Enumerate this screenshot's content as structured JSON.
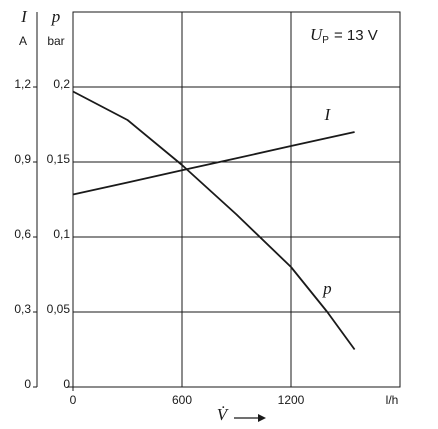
{
  "chart_data": {
    "type": "line",
    "x": [
      0,
      300,
      600,
      900,
      1200,
      1400,
      1550
    ],
    "series": [
      {
        "name": "I",
        "color": "#1a1a1a",
        "values": [
          0.77,
          0.818,
          0.867,
          0.915,
          0.964,
          0.996,
          1.02
        ]
      },
      {
        "name": "p",
        "color": "#1a1a1a",
        "axis": "y2",
        "values": [
          0.197,
          0.178,
          0.148,
          0.115,
          0.08,
          0.05,
          0.025
        ]
      }
    ],
    "xlim": [
      0,
      1800
    ],
    "xticks": [
      0,
      600,
      1200
    ],
    "x_unit": "l/h",
    "x_label": "V̇",
    "ylim": [
      0,
      1.5
    ],
    "yticks": [
      0,
      {
        "value": 0.3,
        "label": "0,3"
      },
      {
        "value": 0.6,
        "label": "0,6"
      },
      {
        "value": 0.9,
        "label": "0,9"
      },
      {
        "value": 1.2,
        "label": "1,2"
      }
    ],
    "y_label": "I",
    "y_unit": "A",
    "y2lim": [
      0,
      0.25
    ],
    "y2ticks": [
      0,
      {
        "value": 0.05,
        "label": "0,05"
      },
      {
        "value": 0.1,
        "label": "0,1"
      },
      {
        "value": 0.15,
        "label": "0,15"
      },
      {
        "value": 0.2,
        "label": "0,2"
      }
    ],
    "y2_label": "p",
    "y2_unit": "bar",
    "annotation": {
      "symbol": "U",
      "subscript": "P",
      "text": "= 13 V"
    },
    "grid": true
  }
}
